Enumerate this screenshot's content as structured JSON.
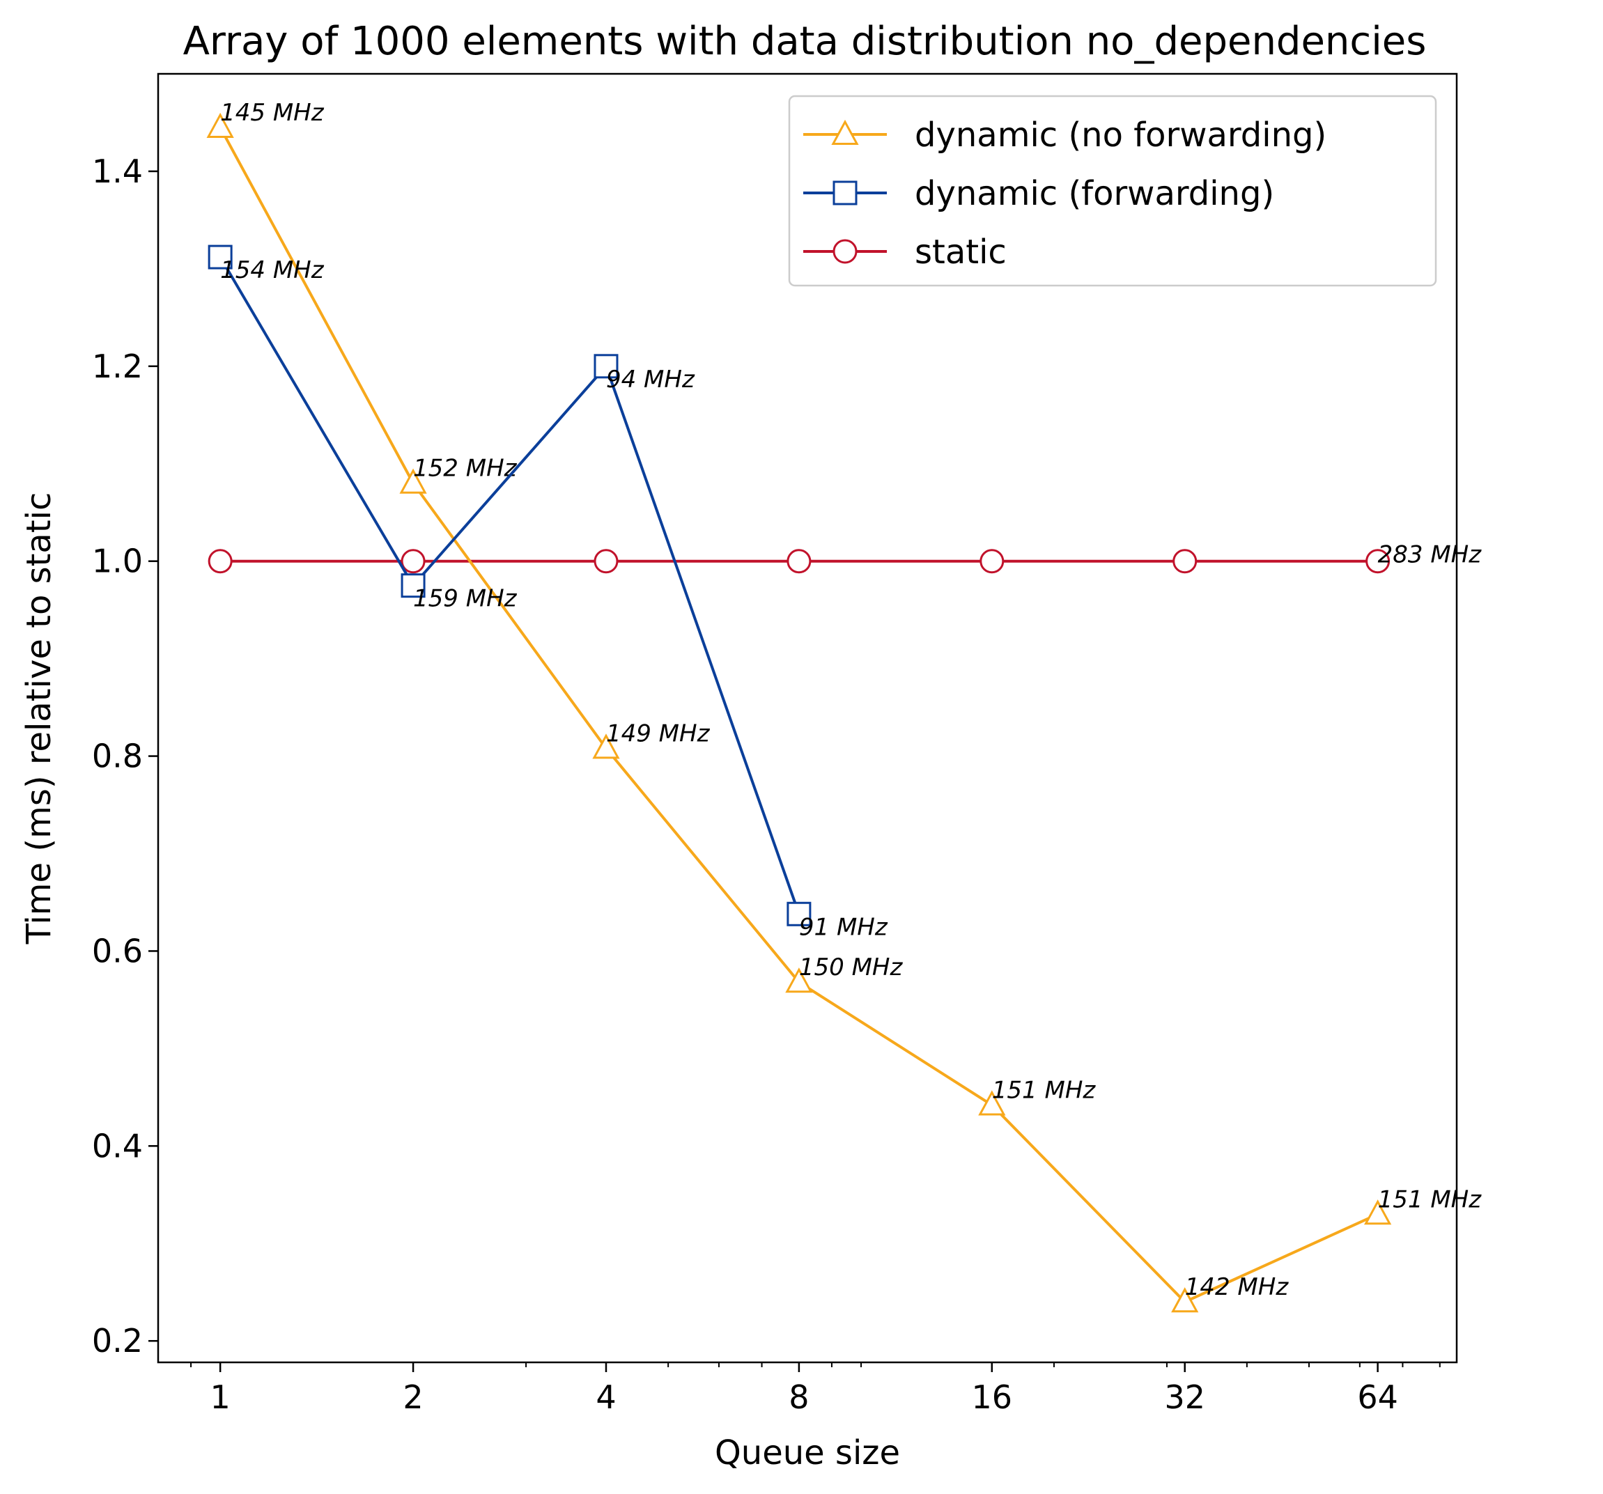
{
  "chart_data": {
    "type": "line",
    "title": "Array of 1000 elements with data distribution no_dependencies",
    "xlabel": "Queue size",
    "ylabel": "Time (ms) relative to static",
    "x": [
      1,
      2,
      4,
      8,
      16,
      32,
      64
    ],
    "x_tick_labels": [
      "1",
      "2",
      "4",
      "8",
      "16",
      "32",
      "64"
    ],
    "x_scale": "log2",
    "xlim": [
      0.8,
      85
    ],
    "ylim": [
      0.178,
      1.5
    ],
    "y_ticks": [
      0.2,
      0.4,
      0.6,
      0.8,
      1.0,
      1.2,
      1.4
    ],
    "y_tick_labels": [
      "0.2",
      "0.4",
      "0.6",
      "0.8",
      "1.0",
      "1.2",
      "1.4"
    ],
    "grid": false,
    "legend": "top-right",
    "series": [
      {
        "name": "dynamic (no forwarding)",
        "color": "#f7a81b",
        "marker": "triangle",
        "x": [
          1,
          2,
          4,
          8,
          16,
          32,
          64
        ],
        "values": [
          1.445,
          1.08,
          0.808,
          0.568,
          0.442,
          0.24,
          0.33
        ],
        "annotations": [
          "145 MHz",
          "152 MHz",
          "149 MHz",
          "150 MHz",
          "151 MHz",
          "142 MHz",
          "151 MHz"
        ]
      },
      {
        "name": "dynamic (forwarding)",
        "color": "#0b3f9a",
        "marker": "square",
        "x": [
          1,
          2,
          4,
          8
        ],
        "values": [
          1.312,
          0.975,
          1.2,
          0.638
        ],
        "annotations": [
          "154 MHz",
          "159 MHz",
          "94 MHz",
          "91 MHz"
        ]
      },
      {
        "name": "static",
        "color": "#c1122b",
        "marker": "circle",
        "x": [
          1,
          2,
          4,
          8,
          16,
          32,
          64
        ],
        "values": [
          1.0,
          1.0,
          1.0,
          1.0,
          1.0,
          1.0,
          1.0
        ],
        "annotations": [
          "",
          "",
          "",
          "",
          "",
          "",
          "283 MHz"
        ]
      }
    ]
  }
}
